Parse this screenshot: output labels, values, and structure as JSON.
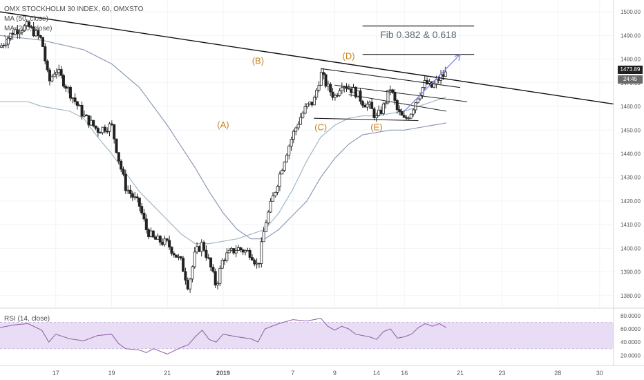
{
  "header": {
    "symbol_line": "OMX STOCKHOLM 30 INDEX, 60, OMXSTO",
    "ma50_label": "MA (50, close)",
    "ma200_label": "MA (200, close)",
    "vol_label": "Vol",
    "rsi_label": "RSI (14, close)"
  },
  "price_tags": {
    "last_price": "1473.89",
    "countdown": "24:45"
  },
  "annotations": {
    "fib_text": "Fib 0.382 & 0.618",
    "waves": [
      {
        "label": "(A)",
        "x": 13,
        "y": 1451
      },
      {
        "label": "(B)",
        "x": 15.5,
        "y": 1478
      },
      {
        "label": "(C)",
        "x": 20,
        "y": 1450
      },
      {
        "label": "(D)",
        "x": 22,
        "y": 1480
      },
      {
        "label": "(E)",
        "x": 24,
        "y": 1450
      }
    ]
  },
  "colors": {
    "candle": "#222222",
    "ma50": "#9fb8c8",
    "ma200": "#8d99b8",
    "rsi_line": "#8e5ea2",
    "rsi_band": "#e9dcf5",
    "wave_label": "#c9821a",
    "arrow": "#7c85d6",
    "trend_line": "#111111"
  },
  "chart_data": {
    "type": "candlestick",
    "x_tick_labels": [
      "17",
      "19",
      "21",
      "2019",
      "7",
      "9",
      "14",
      "16",
      "21",
      "23",
      "28",
      "30"
    ],
    "x_tick_positions": [
      1,
      5,
      9,
      13,
      18,
      21,
      24,
      26,
      30,
      33,
      37,
      40
    ],
    "y_ticks": [
      1380,
      1390,
      1400,
      1410,
      1420,
      1430,
      1440,
      1450,
      1460,
      1470,
      1480,
      1490,
      1500
    ],
    "y_tick_labels": [
      "1380.00",
      "1390.00",
      "1400.00",
      "1410.00",
      "1420.00",
      "1430.00",
      "1440.00",
      "1450.00",
      "1460.00",
      "1470.00",
      "1480.00",
      "1490.00",
      "1500.00"
    ],
    "ylim": [
      1375,
      1505
    ],
    "xlim": [
      -3,
      41
    ],
    "close_path": [
      [
        -3,
        1485
      ],
      [
        -2,
        1492
      ],
      [
        -1,
        1494
      ],
      [
        0,
        1488
      ],
      [
        0.5,
        1470
      ],
      [
        1,
        1476
      ],
      [
        2,
        1466
      ],
      [
        3,
        1456
      ],
      [
        4,
        1450
      ],
      [
        5,
        1452
      ],
      [
        5.5,
        1438
      ],
      [
        6,
        1426
      ],
      [
        7,
        1418
      ],
      [
        7.5,
        1408
      ],
      [
        8,
        1404
      ],
      [
        9,
        1402
      ],
      [
        10,
        1394
      ],
      [
        10.5,
        1384
      ],
      [
        11,
        1398
      ],
      [
        11.5,
        1402
      ],
      [
        12,
        1394
      ],
      [
        12.5,
        1384
      ],
      [
        13,
        1396
      ],
      [
        14,
        1400
      ],
      [
        15,
        1398
      ],
      [
        15.5,
        1392
      ],
      [
        16,
        1410
      ],
      [
        17,
        1430
      ],
      [
        17.5,
        1440
      ],
      [
        18,
        1448
      ],
      [
        18.5,
        1455
      ],
      [
        19,
        1460
      ],
      [
        19.5,
        1462
      ],
      [
        20,
        1474
      ],
      [
        20.5,
        1468
      ],
      [
        21,
        1464
      ],
      [
        21.5,
        1470
      ],
      [
        22,
        1468
      ],
      [
        22.5,
        1466
      ],
      [
        23,
        1462
      ],
      [
        23.5,
        1460
      ],
      [
        24,
        1455
      ],
      [
        24.5,
        1460
      ],
      [
        25,
        1468
      ],
      [
        25.5,
        1458
      ],
      [
        26,
        1454
      ],
      [
        26.5,
        1458
      ],
      [
        27,
        1465
      ],
      [
        27.5,
        1470
      ],
      [
        28,
        1468
      ],
      [
        28.5,
        1472
      ],
      [
        29,
        1474
      ]
    ],
    "ma50_path": [
      [
        -3,
        1462
      ],
      [
        -1,
        1462
      ],
      [
        0,
        1460
      ],
      [
        2,
        1458
      ],
      [
        3,
        1455
      ],
      [
        4,
        1447
      ],
      [
        5,
        1440
      ],
      [
        6,
        1432
      ],
      [
        7,
        1424
      ],
      [
        8,
        1418
      ],
      [
        9,
        1412
      ],
      [
        10,
        1406
      ],
      [
        11,
        1402
      ],
      [
        12,
        1402
      ],
      [
        13,
        1403
      ],
      [
        14,
        1404
      ],
      [
        15,
        1406
      ],
      [
        16,
        1408
      ],
      [
        17,
        1415
      ],
      [
        18,
        1425
      ],
      [
        19,
        1437
      ],
      [
        20,
        1447
      ],
      [
        21,
        1452
      ],
      [
        22,
        1455
      ],
      [
        23,
        1456
      ],
      [
        24,
        1456
      ],
      [
        25,
        1457
      ],
      [
        26,
        1458
      ],
      [
        27,
        1460
      ],
      [
        28,
        1462
      ],
      [
        29,
        1464
      ]
    ],
    "ma200_path": [
      [
        -3,
        1490
      ],
      [
        0,
        1488
      ],
      [
        3,
        1484
      ],
      [
        5,
        1478
      ],
      [
        7,
        1468
      ],
      [
        9,
        1452
      ],
      [
        11,
        1434
      ],
      [
        12,
        1424
      ],
      [
        13,
        1415
      ],
      [
        14,
        1408
      ],
      [
        15,
        1404
      ],
      [
        16,
        1404
      ],
      [
        17,
        1408
      ],
      [
        18,
        1414
      ],
      [
        19,
        1420
      ],
      [
        20,
        1430
      ],
      [
        21,
        1438
      ],
      [
        22,
        1444
      ],
      [
        23,
        1448
      ],
      [
        24,
        1449
      ],
      [
        25,
        1450
      ],
      [
        26,
        1450
      ],
      [
        27,
        1451
      ],
      [
        28,
        1452
      ],
      [
        29,
        1453
      ]
    ],
    "rsi": {
      "yticks": [
        20,
        40,
        60,
        80
      ],
      "ytick_labels": [
        "20.0000",
        "40.0000",
        "60.0000",
        "80.0000"
      ],
      "ylim": [
        14,
        82
      ],
      "band": [
        30,
        70
      ],
      "path": [
        [
          -3,
          62
        ],
        [
          -2,
          66
        ],
        [
          -1,
          68
        ],
        [
          0,
          58
        ],
        [
          0.5,
          40
        ],
        [
          1,
          52
        ],
        [
          2,
          45
        ],
        [
          3,
          42
        ],
        [
          4,
          50
        ],
        [
          5,
          52
        ],
        [
          5.5,
          38
        ],
        [
          6,
          30
        ],
        [
          7,
          28
        ],
        [
          7.5,
          24
        ],
        [
          8,
          30
        ],
        [
          9,
          22
        ],
        [
          10,
          32
        ],
        [
          10.5,
          36
        ],
        [
          11,
          48
        ],
        [
          11.5,
          58
        ],
        [
          12,
          44
        ],
        [
          12.5,
          40
        ],
        [
          13,
          52
        ],
        [
          14,
          48
        ],
        [
          15,
          45
        ],
        [
          15.5,
          40
        ],
        [
          16,
          60
        ],
        [
          17,
          68
        ],
        [
          18,
          74
        ],
        [
          19,
          72
        ],
        [
          20,
          76
        ],
        [
          20.5,
          64
        ],
        [
          21,
          58
        ],
        [
          21.5,
          64
        ],
        [
          22,
          60
        ],
        [
          22.5,
          52
        ],
        [
          23,
          50
        ],
        [
          23.5,
          48
        ],
        [
          24,
          44
        ],
        [
          24.5,
          56
        ],
        [
          25,
          60
        ],
        [
          25.5,
          46
        ],
        [
          26,
          48
        ],
        [
          26.5,
          52
        ],
        [
          27,
          62
        ],
        [
          27.5,
          68
        ],
        [
          28,
          64
        ],
        [
          28.5,
          68
        ],
        [
          29,
          62
        ]
      ]
    },
    "drawings": {
      "main_trend": [
        [
          -3,
          1500
        ],
        [
          41,
          1461
        ]
      ],
      "fib_line_top": [
        [
          23,
          1494
        ],
        [
          31,
          1494
        ]
      ],
      "fib_line_mid": [
        [
          23,
          1482
        ],
        [
          31,
          1482
        ]
      ],
      "triangle_upper": [
        [
          20,
          1476
        ],
        [
          30,
          1468
        ]
      ],
      "triangle_lower": [
        [
          19.5,
          1455
        ],
        [
          27,
          1454
        ]
      ],
      "wedge_upper": [
        [
          21,
          1469
        ],
        [
          30.5,
          1462
        ]
      ],
      "wedge_lower": [
        [
          22,
          1465
        ],
        [
          29,
          1458
        ]
      ],
      "arrow": [
        [
          26,
          1458
        ],
        [
          30,
          1482
        ]
      ]
    }
  }
}
